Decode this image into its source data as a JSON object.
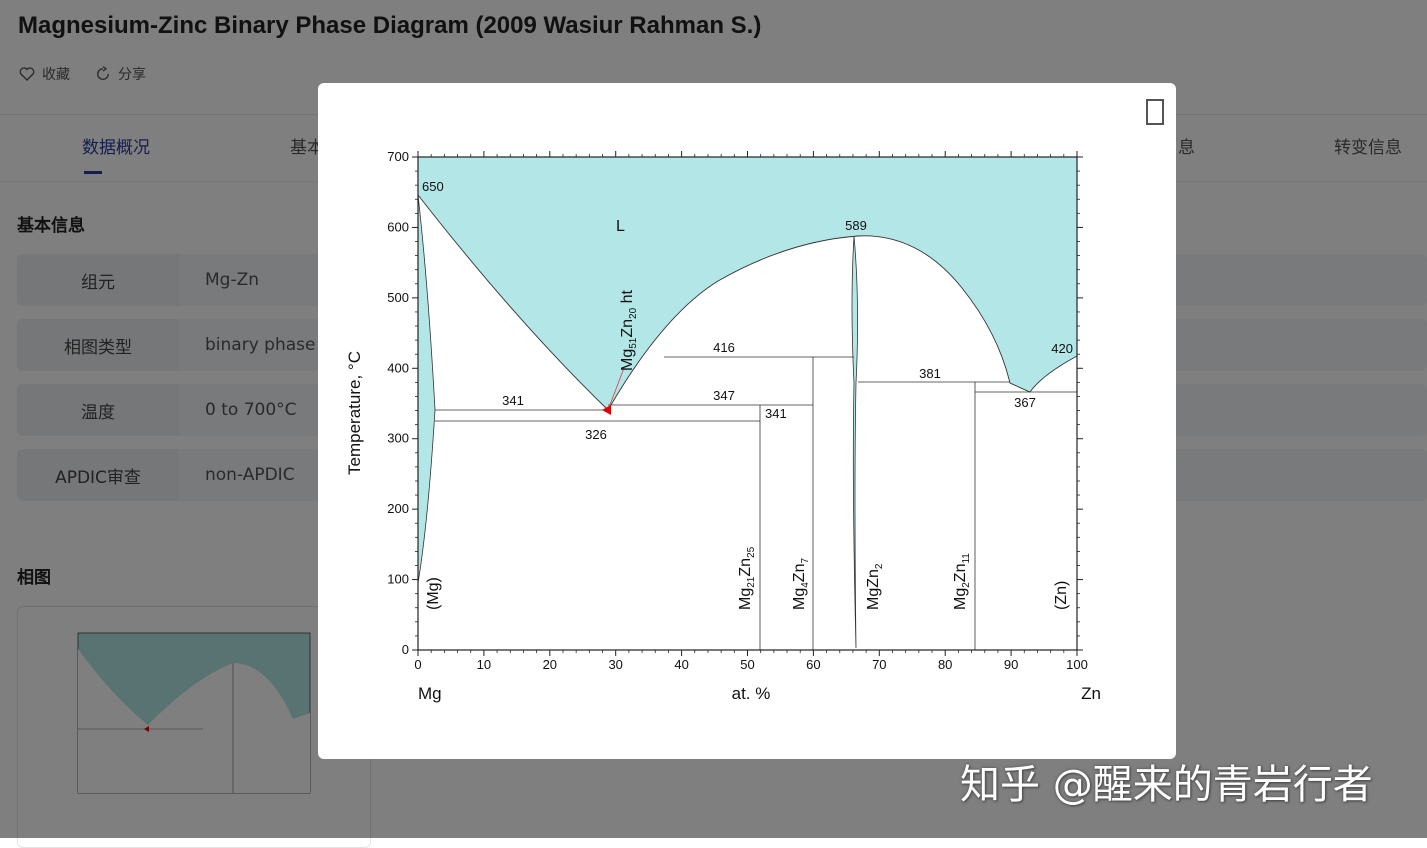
{
  "page": {
    "title": "Magnesium-Zinc Binary Phase Diagram (2009 Wasiur Rahman S.)",
    "actions": {
      "favorite_label": "收藏",
      "share_label": "分享"
    },
    "tabs": [
      {
        "label": "数据概况",
        "active": true
      },
      {
        "label": "基本"
      },
      {
        "label": "息"
      },
      {
        "label": "转变信息"
      }
    ],
    "basic_info": {
      "section_title": "基本信息",
      "rows": [
        {
          "key": "组元",
          "value": "Mg-Zn"
        },
        {
          "key": "相图类型",
          "value": "binary phase"
        },
        {
          "key": "温度",
          "value": "0 to 700°C"
        },
        {
          "key": "APDIC审查",
          "value": "non-APDIC"
        }
      ]
    },
    "diagram_section": {
      "title": "相图"
    }
  },
  "modal": {
    "diagram": {
      "y_axis_label": "Temperature, °C",
      "x_axis_label": "at. %",
      "left_element": "Mg",
      "right_element": "Zn",
      "x_ticks": [
        "0",
        "10",
        "20",
        "30",
        "40",
        "50",
        "60",
        "70",
        "80",
        "90",
        "100"
      ],
      "y_ticks": [
        "0",
        "100",
        "200",
        "300",
        "400",
        "500",
        "600",
        "700"
      ],
      "liquid_label": "L",
      "temperature_labels": [
        "650",
        "589",
        "420",
        "416",
        "381",
        "367",
        "341",
        "347",
        "341",
        "326"
      ],
      "phase_labels": {
        "mg": "(Mg)",
        "zn": "(Zn)",
        "mg21zn25": {
          "base1": "Mg",
          "sub1": "21",
          "base2": "Zn",
          "sub2": "25"
        },
        "mg4zn7": {
          "base1": "Mg",
          "sub1": "4",
          "base2": "Zn",
          "sub2": "7"
        },
        "mgzn2": {
          "base1": "MgZn",
          "sub1": "2"
        },
        "mg2zn11": {
          "base1": "Mg",
          "sub1": "2",
          "base2": "Zn",
          "sub2": "11"
        },
        "mg51zn20": {
          "base1": "Mg",
          "sub1": "51",
          "base2": "Zn",
          "sub2": "20",
          "suffix": " ht"
        }
      },
      "colors": {
        "liquid_fill": "#b3e6e6",
        "marker": "#e00000",
        "axis": "#222222"
      }
    }
  },
  "watermark": "知乎 @醒来的青岩行者"
}
